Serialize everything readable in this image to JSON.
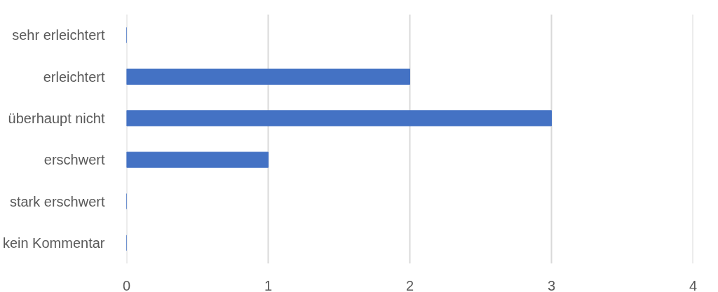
{
  "chart_data": {
    "type": "bar",
    "orientation": "horizontal",
    "categories": [
      "sehr erleichtert",
      "erleichtert",
      "überhaupt nicht",
      "erschwert",
      "stark erschwert",
      "kein Kommentar"
    ],
    "values": [
      0,
      2,
      3,
      1,
      0,
      0
    ],
    "color": "#4472c4",
    "xlim": [
      0,
      4
    ],
    "xticks": [
      0,
      1,
      2,
      3,
      4
    ],
    "grid": "x"
  }
}
